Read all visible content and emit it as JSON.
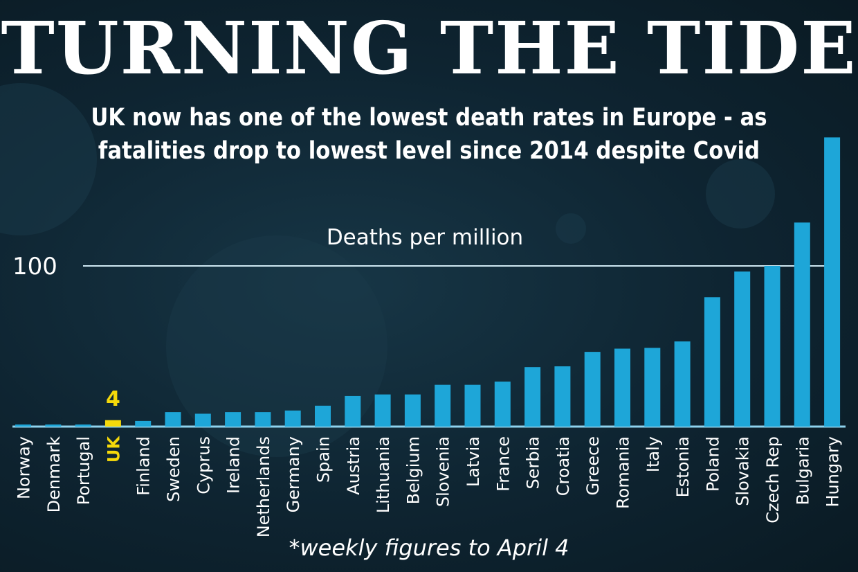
{
  "title": "TURNING THE TIDE",
  "subtitle": "UK now has one of the lowest death rates in Europe - as fatalities drop to lowest level since 2014 despite Covid",
  "footnote": "*weekly figures to April 4",
  "colors": {
    "bar": "#1ea6d8",
    "highlight": "#f5d90a",
    "text": "#ffffff"
  },
  "chart_data": {
    "type": "bar",
    "title": "Deaths per million",
    "ylabel": "Deaths per million",
    "yticks": [
      100
    ],
    "ytick_labels": [
      "100"
    ],
    "ylim": [
      0,
      180
    ],
    "highlight": "UK",
    "highlight_label": "4",
    "categories": [
      "Norway",
      "Denmark",
      "Portugal",
      "UK",
      "Finland",
      "Sweden",
      "Cyprus",
      "Ireland",
      "Netherlands",
      "Germany",
      "Spain",
      "Austria",
      "Lithuania",
      "Belgium",
      "Slovenia",
      "Latvia",
      "France",
      "Serbia",
      "Croatia",
      "Greece",
      "Romania",
      "Italy",
      "Estonia",
      "Poland",
      "Slovakia",
      "Czech Rep",
      "Bulgaria",
      "Hungary"
    ],
    "values": [
      1,
      1,
      1,
      4,
      3.5,
      9,
      8,
      9,
      9,
      10,
      13,
      19,
      20,
      20,
      26,
      26,
      28,
      37,
      37.5,
      46.5,
      48.5,
      49,
      53,
      80.5,
      96.5,
      100,
      127,
      180
    ]
  }
}
